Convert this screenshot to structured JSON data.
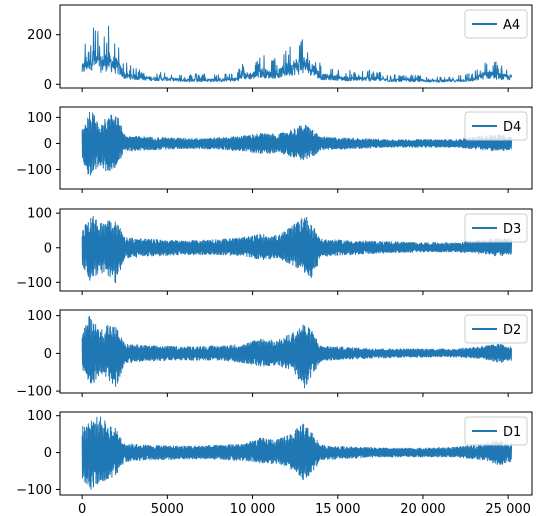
{
  "chart_data": [
    {
      "type": "line",
      "legend": "A4",
      "legend_position": "top-right",
      "xlim": [
        -1300,
        26400
      ],
      "ylim": [
        -15,
        320
      ],
      "yticks": [
        0,
        200
      ],
      "xticks": [],
      "envelope": [
        {
          "x": 0,
          "min": 20,
          "max": 140
        },
        {
          "x": 500,
          "min": 15,
          "max": 310
        },
        {
          "x": 1000,
          "min": 20,
          "max": 200
        },
        {
          "x": 1500,
          "min": 20,
          "max": 250
        },
        {
          "x": 2000,
          "min": 15,
          "max": 200
        },
        {
          "x": 2500,
          "min": 10,
          "max": 90
        },
        {
          "x": 3000,
          "min": 10,
          "max": 70
        },
        {
          "x": 4000,
          "min": 8,
          "max": 55
        },
        {
          "x": 5000,
          "min": 8,
          "max": 50
        },
        {
          "x": 6000,
          "min": 5,
          "max": 40
        },
        {
          "x": 7000,
          "min": 5,
          "max": 45
        },
        {
          "x": 8000,
          "min": 5,
          "max": 40
        },
        {
          "x": 9000,
          "min": 5,
          "max": 50
        },
        {
          "x": 9500,
          "min": 8,
          "max": 90
        },
        {
          "x": 10000,
          "min": 8,
          "max": 90
        },
        {
          "x": 10500,
          "min": 10,
          "max": 130
        },
        {
          "x": 11000,
          "min": 10,
          "max": 100
        },
        {
          "x": 11500,
          "min": 10,
          "max": 110
        },
        {
          "x": 12000,
          "min": 10,
          "max": 160
        },
        {
          "x": 12500,
          "min": 10,
          "max": 200
        },
        {
          "x": 13000,
          "min": 10,
          "max": 225
        },
        {
          "x": 13500,
          "min": 10,
          "max": 180
        },
        {
          "x": 14000,
          "min": 8,
          "max": 80
        },
        {
          "x": 15000,
          "min": 8,
          "max": 60
        },
        {
          "x": 16000,
          "min": 5,
          "max": 55
        },
        {
          "x": 17000,
          "min": 5,
          "max": 60
        },
        {
          "x": 18000,
          "min": 5,
          "max": 40
        },
        {
          "x": 19000,
          "min": 5,
          "max": 40
        },
        {
          "x": 20000,
          "min": 5,
          "max": 35
        },
        {
          "x": 21000,
          "min": 5,
          "max": 30
        },
        {
          "x": 22000,
          "min": 5,
          "max": 35
        },
        {
          "x": 23000,
          "min": 5,
          "max": 50
        },
        {
          "x": 23500,
          "min": 8,
          "max": 90
        },
        {
          "x": 24000,
          "min": 8,
          "max": 110
        },
        {
          "x": 24500,
          "min": 8,
          "max": 80
        },
        {
          "x": 25000,
          "min": 8,
          "max": 70
        }
      ]
    },
    {
      "type": "line",
      "legend": "D4",
      "legend_position": "top-right",
      "xlim": [
        -1300,
        26400
      ],
      "ylim": [
        -175,
        140
      ],
      "yticks": [
        -100,
        0,
        100
      ],
      "xticks": [],
      "envelope": [
        {
          "x": 0,
          "min": -60,
          "max": 60
        },
        {
          "x": 500,
          "min": -160,
          "max": 130
        },
        {
          "x": 1000,
          "min": -90,
          "max": 80
        },
        {
          "x": 1500,
          "min": -110,
          "max": 100
        },
        {
          "x": 2000,
          "min": -90,
          "max": 130
        },
        {
          "x": 2500,
          "min": -30,
          "max": 30
        },
        {
          "x": 4000,
          "min": -25,
          "max": 25
        },
        {
          "x": 6000,
          "min": -20,
          "max": 20
        },
        {
          "x": 8000,
          "min": -22,
          "max": 22
        },
        {
          "x": 9500,
          "min": -30,
          "max": 30
        },
        {
          "x": 10500,
          "min": -40,
          "max": 40
        },
        {
          "x": 11500,
          "min": -35,
          "max": 35
        },
        {
          "x": 12500,
          "min": -55,
          "max": 60
        },
        {
          "x": 13000,
          "min": -65,
          "max": 75
        },
        {
          "x": 13500,
          "min": -55,
          "max": 55
        },
        {
          "x": 14000,
          "min": -25,
          "max": 25
        },
        {
          "x": 16000,
          "min": -20,
          "max": 20
        },
        {
          "x": 18000,
          "min": -15,
          "max": 15
        },
        {
          "x": 20000,
          "min": -15,
          "max": 15
        },
        {
          "x": 22000,
          "min": -15,
          "max": 15
        },
        {
          "x": 23500,
          "min": -25,
          "max": 30
        },
        {
          "x": 24500,
          "min": -30,
          "max": 35
        },
        {
          "x": 25000,
          "min": -25,
          "max": 25
        }
      ]
    },
    {
      "type": "line",
      "legend": "D3",
      "legend_position": "top-right",
      "xlim": [
        -1300,
        26400
      ],
      "ylim": [
        -125,
        112
      ],
      "yticks": [
        -100,
        0,
        100
      ],
      "xticks": [],
      "envelope": [
        {
          "x": 0,
          "min": -50,
          "max": 60
        },
        {
          "x": 500,
          "min": -100,
          "max": 100
        },
        {
          "x": 1000,
          "min": -70,
          "max": 70
        },
        {
          "x": 1500,
          "min": -80,
          "max": 90
        },
        {
          "x": 2000,
          "min": -110,
          "max": 80
        },
        {
          "x": 2500,
          "min": -30,
          "max": 30
        },
        {
          "x": 4000,
          "min": -25,
          "max": 25
        },
        {
          "x": 6000,
          "min": -20,
          "max": 20
        },
        {
          "x": 8000,
          "min": -20,
          "max": 25
        },
        {
          "x": 9500,
          "min": -25,
          "max": 30
        },
        {
          "x": 10500,
          "min": -35,
          "max": 40
        },
        {
          "x": 11500,
          "min": -30,
          "max": 35
        },
        {
          "x": 12500,
          "min": -55,
          "max": 70
        },
        {
          "x": 13000,
          "min": -70,
          "max": 100
        },
        {
          "x": 13500,
          "min": -95,
          "max": 70
        },
        {
          "x": 14000,
          "min": -25,
          "max": 25
        },
        {
          "x": 16000,
          "min": -20,
          "max": 20
        },
        {
          "x": 18000,
          "min": -15,
          "max": 18
        },
        {
          "x": 20000,
          "min": -12,
          "max": 15
        },
        {
          "x": 22000,
          "min": -12,
          "max": 15
        },
        {
          "x": 23500,
          "min": -18,
          "max": 22
        },
        {
          "x": 24500,
          "min": -25,
          "max": 30
        },
        {
          "x": 25000,
          "min": -20,
          "max": 25
        }
      ]
    },
    {
      "type": "line",
      "legend": "D2",
      "legend_position": "top-right",
      "xlim": [
        -1300,
        26400
      ],
      "ylim": [
        -105,
        115
      ],
      "yticks": [
        -100,
        0,
        100
      ],
      "xticks": [],
      "envelope": [
        {
          "x": 0,
          "min": -45,
          "max": 50
        },
        {
          "x": 500,
          "min": -90,
          "max": 110
        },
        {
          "x": 1000,
          "min": -60,
          "max": 60
        },
        {
          "x": 1500,
          "min": -70,
          "max": 80
        },
        {
          "x": 2000,
          "min": -90,
          "max": 70
        },
        {
          "x": 2500,
          "min": -25,
          "max": 25
        },
        {
          "x": 4000,
          "min": -20,
          "max": 20
        },
        {
          "x": 6000,
          "min": -18,
          "max": 18
        },
        {
          "x": 8000,
          "min": -18,
          "max": 20
        },
        {
          "x": 9500,
          "min": -25,
          "max": 25
        },
        {
          "x": 10500,
          "min": -35,
          "max": 40
        },
        {
          "x": 11500,
          "min": -30,
          "max": 35
        },
        {
          "x": 12500,
          "min": -55,
          "max": 60
        },
        {
          "x": 13000,
          "min": -95,
          "max": 80
        },
        {
          "x": 13500,
          "min": -60,
          "max": 60
        },
        {
          "x": 14000,
          "min": -20,
          "max": 20
        },
        {
          "x": 16000,
          "min": -15,
          "max": 15
        },
        {
          "x": 18000,
          "min": -12,
          "max": 12
        },
        {
          "x": 20000,
          "min": -10,
          "max": 12
        },
        {
          "x": 22000,
          "min": -10,
          "max": 12
        },
        {
          "x": 23500,
          "min": -15,
          "max": 20
        },
        {
          "x": 24500,
          "min": -25,
          "max": 25
        },
        {
          "x": 25000,
          "min": -20,
          "max": 20
        }
      ]
    },
    {
      "type": "line",
      "legend": "D1",
      "legend_position": "top-right",
      "xlim": [
        -1300,
        26400
      ],
      "ylim": [
        -115,
        110
      ],
      "yticks": [
        -100,
        0,
        100
      ],
      "xticks": [
        0,
        5000,
        10000,
        15000,
        20000,
        25000
      ],
      "xtick_labels": [
        "0",
        "5000",
        "10 000",
        "15 000",
        "20 000",
        "25 000"
      ],
      "envelope": [
        {
          "x": 0,
          "min": -70,
          "max": 70
        },
        {
          "x": 500,
          "min": -105,
          "max": 90
        },
        {
          "x": 1000,
          "min": -80,
          "max": 100
        },
        {
          "x": 1500,
          "min": -75,
          "max": 80
        },
        {
          "x": 2000,
          "min": -60,
          "max": 65
        },
        {
          "x": 2500,
          "min": -25,
          "max": 25
        },
        {
          "x": 4000,
          "min": -20,
          "max": 20
        },
        {
          "x": 6000,
          "min": -18,
          "max": 18
        },
        {
          "x": 8000,
          "min": -18,
          "max": 20
        },
        {
          "x": 9500,
          "min": -22,
          "max": 25
        },
        {
          "x": 10500,
          "min": -30,
          "max": 40
        },
        {
          "x": 11500,
          "min": -30,
          "max": 35
        },
        {
          "x": 12500,
          "min": -50,
          "max": 60
        },
        {
          "x": 13000,
          "min": -75,
          "max": 85
        },
        {
          "x": 13500,
          "min": -55,
          "max": 55
        },
        {
          "x": 14000,
          "min": -20,
          "max": 20
        },
        {
          "x": 16000,
          "min": -15,
          "max": 15
        },
        {
          "x": 18000,
          "min": -12,
          "max": 12
        },
        {
          "x": 20000,
          "min": -12,
          "max": 12
        },
        {
          "x": 22000,
          "min": -12,
          "max": 15
        },
        {
          "x": 23500,
          "min": -20,
          "max": 25
        },
        {
          "x": 24500,
          "min": -35,
          "max": 35
        },
        {
          "x": 25000,
          "min": -25,
          "max": 25
        }
      ]
    }
  ]
}
